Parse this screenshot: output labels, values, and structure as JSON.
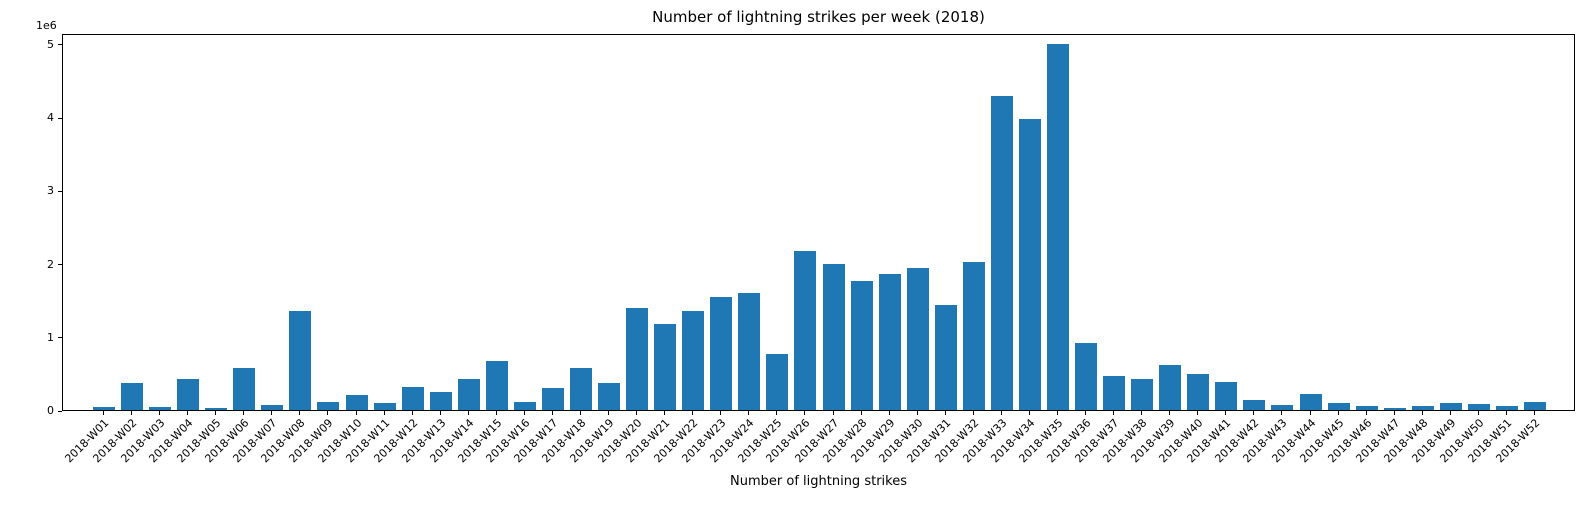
{
  "chart_data": {
    "type": "bar",
    "title": "Number of lightning strikes per week (2018)",
    "xlabel": "Number of lightning strikes",
    "ylabel": "",
    "y_offset_label": "1e6",
    "bar_color": "#1f77b4",
    "grid": false,
    "legend": null,
    "ylim": [
      0,
      5150000
    ],
    "yticks": {
      "values": [
        0,
        1000000,
        2000000,
        3000000,
        4000000,
        5000000
      ],
      "labels": [
        "0",
        "1",
        "2",
        "3",
        "4",
        "5"
      ]
    },
    "categories": [
      "2018-W01",
      "2018-W02",
      "2018-W03",
      "2018-W04",
      "2018-W05",
      "2018-W06",
      "2018-W07",
      "2018-W08",
      "2018-W09",
      "2018-W10",
      "2018-W11",
      "2018-W12",
      "2018-W13",
      "2018-W14",
      "2018-W15",
      "2018-W16",
      "2018-W17",
      "2018-W18",
      "2018-W19",
      "2018-W20",
      "2018-W21",
      "2018-W22",
      "2018-W23",
      "2018-W24",
      "2018-W25",
      "2018-W26",
      "2018-W27",
      "2018-W28",
      "2018-W29",
      "2018-W30",
      "2018-W31",
      "2018-W32",
      "2018-W33",
      "2018-W34",
      "2018-W35",
      "2018-W36",
      "2018-W37",
      "2018-W38",
      "2018-W39",
      "2018-W40",
      "2018-W41",
      "2018-W42",
      "2018-W43",
      "2018-W44",
      "2018-W45",
      "2018-W46",
      "2018-W47",
      "2018-W48",
      "2018-W49",
      "2018-W50",
      "2018-W51",
      "2018-W52"
    ],
    "values": [
      40000,
      370000,
      40000,
      420000,
      30000,
      570000,
      70000,
      1350000,
      110000,
      200000,
      100000,
      320000,
      240000,
      430000,
      670000,
      110000,
      300000,
      570000,
      370000,
      1400000,
      1170000,
      1350000,
      1550000,
      1600000,
      760000,
      2170000,
      2000000,
      1760000,
      1860000,
      1940000,
      1440000,
      2020000,
      4290000,
      3980000,
      5000000,
      910000,
      460000,
      420000,
      610000,
      490000,
      380000,
      140000,
      70000,
      220000,
      100000,
      50000,
      30000,
      50000,
      90000,
      80000,
      50000,
      110000
    ]
  }
}
